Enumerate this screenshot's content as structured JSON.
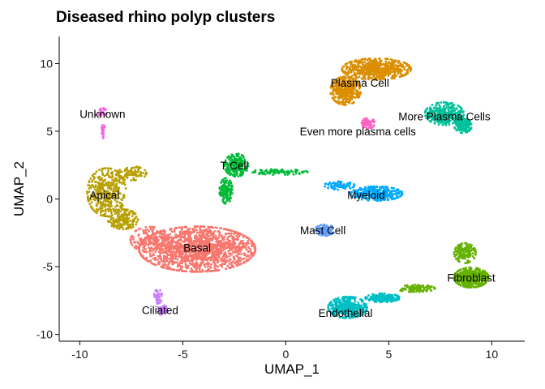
{
  "chart_data": {
    "type": "scatter",
    "title": "Diseased rhino polyp clusters",
    "xlabel": "UMAP_1",
    "ylabel": "UMAP_2",
    "xlim": [
      -11,
      11.6
    ],
    "ylim": [
      -10.5,
      12
    ],
    "x_ticks": [
      -10,
      -5,
      0,
      5,
      10
    ],
    "y_ticks": [
      -10,
      -5,
      0,
      5,
      10
    ],
    "grid": false,
    "legend": "none",
    "clusters": [
      {
        "name": "Basal",
        "color": "#F8766D",
        "label_x": -4.3,
        "label_y": -3.6,
        "n": 1700,
        "shape": [
          [
            -4.3,
            -3.7,
            2.7,
            1.6,
            0.9
          ],
          [
            -6.6,
            -3.0,
            0.9,
            0.9,
            0.1
          ]
        ]
      },
      {
        "name": "Apical",
        "color": "#B79F00",
        "label_x": -8.8,
        "label_y": 0.3,
        "n": 650,
        "shape": [
          [
            -8.7,
            0.5,
            0.9,
            1.7,
            0.6
          ],
          [
            -7.5,
            1.9,
            0.7,
            0.5,
            0.15
          ],
          [
            -7.9,
            -1.5,
            0.7,
            0.7,
            0.25
          ]
        ]
      },
      {
        "name": "Unknown",
        "color": "#F564E3",
        "label_x": -8.9,
        "label_y": 6.3,
        "n": 50,
        "shape": [
          [
            -8.9,
            6.4,
            0.2,
            0.3,
            0.5
          ],
          [
            -8.85,
            5.0,
            0.1,
            0.5,
            0.5
          ]
        ]
      },
      {
        "name": "Ciliated",
        "color": "#C77CFF",
        "label_x": -6.1,
        "label_y": -8.2,
        "n": 90,
        "shape": [
          [
            -6.2,
            -7.2,
            0.2,
            0.5,
            0.45
          ],
          [
            -6.0,
            -8.2,
            0.25,
            0.35,
            0.55
          ]
        ]
      },
      {
        "name": "T Cell",
        "color": "#00BA38",
        "label_x": -2.5,
        "label_y": 2.5,
        "n": 440,
        "shape": [
          [
            -2.4,
            2.5,
            0.55,
            0.8,
            0.5
          ],
          [
            -2.9,
            0.6,
            0.3,
            0.9,
            0.3
          ],
          [
            -0.3,
            2.0,
            1.3,
            0.2,
            0.2
          ]
        ]
      },
      {
        "name": "Myeloid",
        "color": "#00A9FF",
        "label_x": 3.9,
        "label_y": 0.3,
        "n": 420,
        "shape": [
          [
            4.4,
            0.4,
            1.2,
            0.5,
            0.8
          ],
          [
            2.6,
            1.0,
            0.7,
            0.3,
            0.2
          ]
        ]
      },
      {
        "name": "Mast Cell",
        "color": "#619CFF",
        "label_x": 1.8,
        "label_y": -2.3,
        "n": 110,
        "shape": [
          [
            1.9,
            -2.3,
            0.45,
            0.4,
            1.0
          ]
        ]
      },
      {
        "name": "Plasma Cell",
        "color": "#DB8E00",
        "label_x": 3.6,
        "label_y": 8.6,
        "n": 1000,
        "shape": [
          [
            4.4,
            9.6,
            1.6,
            0.75,
            0.6
          ],
          [
            2.9,
            8.0,
            0.7,
            1.0,
            0.4
          ]
        ]
      },
      {
        "name": "More Plasma Cells",
        "color": "#00C19A",
        "label_x": 7.7,
        "label_y": 6.1,
        "n": 450,
        "shape": [
          [
            7.7,
            6.3,
            0.9,
            0.8,
            0.65
          ],
          [
            8.6,
            5.4,
            0.4,
            0.5,
            0.35
          ]
        ]
      },
      {
        "name": "Even more plasma cells",
        "color": "#FF61C3",
        "label_x": 3.5,
        "label_y": 5.0,
        "n": 60,
        "shape": [
          [
            4.0,
            5.6,
            0.3,
            0.4,
            1.0
          ]
        ]
      },
      {
        "name": "Fibroblast",
        "color": "#64B200",
        "label_x": 9.0,
        "label_y": -5.8,
        "n": 720,
        "shape": [
          [
            9.0,
            -5.8,
            0.8,
            0.7,
            0.6
          ],
          [
            8.7,
            -4.0,
            0.5,
            0.7,
            0.25
          ],
          [
            6.3,
            -6.6,
            0.9,
            0.25,
            0.15
          ]
        ]
      },
      {
        "name": "Endothelial",
        "color": "#00BFC4",
        "label_x": 2.9,
        "label_y": -8.4,
        "n": 560,
        "shape": [
          [
            3.0,
            -8.0,
            0.9,
            0.75,
            0.7
          ],
          [
            4.7,
            -7.3,
            0.8,
            0.3,
            0.3
          ]
        ]
      }
    ]
  }
}
